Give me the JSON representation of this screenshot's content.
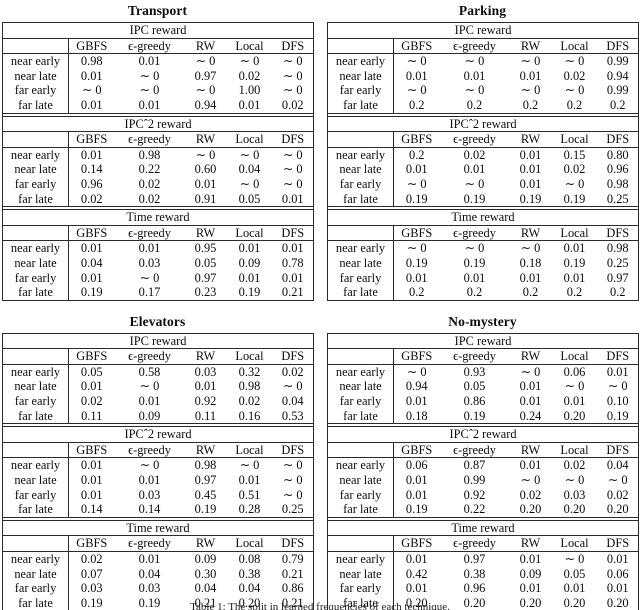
{
  "caption": "Table 1: The split in learned frequencies of each technique.",
  "columns": [
    "GBFS",
    "ϵ-greedy",
    "RW",
    "Local",
    "DFS"
  ],
  "row_labels": [
    "near early",
    "near late",
    "far early",
    "far late"
  ],
  "section_titles": [
    "IPC reward",
    "IPCˆ2 reward",
    "Time reward"
  ],
  "domains": [
    {
      "title": "Transport",
      "sections": [
        {
          "title": "IPC reward",
          "rows": [
            [
              "0.98",
              "0.01",
              "∼ 0",
              "∼ 0",
              "∼ 0"
            ],
            [
              "0.01",
              "∼ 0",
              "0.97",
              "0.02",
              "∼ 0"
            ],
            [
              "∼ 0",
              "∼ 0",
              "∼ 0",
              "1.00",
              "∼ 0"
            ],
            [
              "0.01",
              "0.01",
              "0.94",
              "0.01",
              "0.02"
            ]
          ]
        },
        {
          "title": "IPCˆ2 reward",
          "rows": [
            [
              "0.01",
              "0.98",
              "∼ 0",
              "∼ 0",
              "∼ 0"
            ],
            [
              "0.14",
              "0.22",
              "0.60",
              "0.04",
              "∼ 0"
            ],
            [
              "0.96",
              "0.02",
              "0.01",
              "∼ 0",
              "∼ 0"
            ],
            [
              "0.02",
              "0.02",
              "0.91",
              "0.05",
              "0.01"
            ]
          ]
        },
        {
          "title": "Time reward",
          "rows": [
            [
              "0.01",
              "0.01",
              "0.95",
              "0.01",
              "0.01"
            ],
            [
              "0.04",
              "0.03",
              "0.05",
              "0.09",
              "0.78"
            ],
            [
              "0.01",
              "∼ 0",
              "0.97",
              "0.01",
              "0.01"
            ],
            [
              "0.19",
              "0.17",
              "0.23",
              "0.19",
              "0.21"
            ]
          ]
        }
      ]
    },
    {
      "title": "Parking",
      "sections": [
        {
          "title": "IPC reward",
          "rows": [
            [
              "∼ 0",
              "∼ 0",
              "∼ 0",
              "∼ 0",
              "0.99"
            ],
            [
              "0.01",
              "0.01",
              "0.01",
              "0.02",
              "0.94"
            ],
            [
              "∼ 0",
              "∼ 0",
              "∼ 0",
              "∼ 0",
              "0.99"
            ],
            [
              "0.2",
              "0.2",
              "0.2",
              "0.2",
              "0.2"
            ]
          ]
        },
        {
          "title": "IPCˆ2 reward",
          "rows": [
            [
              "0.2",
              "0.02",
              "0.01",
              "0.15",
              "0.80"
            ],
            [
              "0.01",
              "0.01",
              "0.01",
              "0.02",
              "0.96"
            ],
            [
              "∼ 0",
              "∼ 0",
              "0.01",
              "∼ 0",
              "0.98"
            ],
            [
              "0.19",
              "0.19",
              "0.19",
              "0.19",
              "0.25"
            ]
          ]
        },
        {
          "title": "Time reward",
          "rows": [
            [
              "∼ 0",
              "∼ 0",
              "∼ 0",
              "0.01",
              "0.98"
            ],
            [
              "0.19",
              "0.19",
              "0.18",
              "0.19",
              "0.25"
            ],
            [
              "0.01",
              "0.01",
              "0.01",
              "0.01",
              "0.97"
            ],
            [
              "0.2",
              "0.2",
              "0.2",
              "0.2",
              "0.2"
            ]
          ]
        }
      ]
    },
    {
      "title": "Elevators",
      "sections": [
        {
          "title": "IPC reward",
          "rows": [
            [
              "0.05",
              "0.58",
              "0.03",
              "0.32",
              "0.02"
            ],
            [
              "0.01",
              "∼ 0",
              "0.01",
              "0.98",
              "∼ 0"
            ],
            [
              "0.02",
              "0.01",
              "0.92",
              "0.02",
              "0.04"
            ],
            [
              "0.11",
              "0.09",
              "0.11",
              "0.16",
              "0.53"
            ]
          ]
        },
        {
          "title": "IPCˆ2 reward",
          "rows": [
            [
              "0.01",
              "∼ 0",
              "0.98",
              "∼ 0",
              "∼ 0"
            ],
            [
              "0.01",
              "0.01",
              "0.97",
              "0.01",
              "∼ 0"
            ],
            [
              "0.01",
              "0.03",
              "0.45",
              "0.51",
              "∼ 0"
            ],
            [
              "0.14",
              "0.14",
              "0.19",
              "0.28",
              "0.25"
            ]
          ]
        },
        {
          "title": "Time reward",
          "rows": [
            [
              "0.02",
              "0.01",
              "0.09",
              "0.08",
              "0.79"
            ],
            [
              "0.07",
              "0.04",
              "0.30",
              "0.38",
              "0.21"
            ],
            [
              "0.03",
              "0.03",
              "0.04",
              "0.04",
              "0.86"
            ],
            [
              "0.19",
              "0.19",
              "0.21",
              "0.20",
              "0.21"
            ]
          ]
        }
      ]
    },
    {
      "title": "No-mystery",
      "sections": [
        {
          "title": "IPC reward",
          "rows": [
            [
              "∼ 0",
              "0.93",
              "∼ 0",
              "0.06",
              "0.01"
            ],
            [
              "0.94",
              "0.05",
              "0.01",
              "∼ 0",
              "∼ 0"
            ],
            [
              "0.01",
              "0.86",
              "0.01",
              "0.01",
              "0.10"
            ],
            [
              "0.18",
              "0.19",
              "0.24",
              "0.20",
              "0.19"
            ]
          ]
        },
        {
          "title": "IPCˆ2 reward",
          "rows": [
            [
              "0.06",
              "0.87",
              "0.01",
              "0.02",
              "0.04"
            ],
            [
              "0.01",
              "0.99",
              "∼ 0",
              "∼ 0",
              "∼ 0"
            ],
            [
              "0.01",
              "0.92",
              "0.02",
              "0.03",
              "0.02"
            ],
            [
              "0.19",
              "0.22",
              "0.20",
              "0.20",
              "0.20"
            ]
          ]
        },
        {
          "title": "Time reward",
          "rows": [
            [
              "0.01",
              "0.97",
              "0.01",
              "∼ 0",
              "0.01"
            ],
            [
              "0.42",
              "0.38",
              "0.09",
              "0.05",
              "0.06"
            ],
            [
              "0.01",
              "0.96",
              "0.01",
              "0.01",
              "0.01"
            ],
            [
              "0.20",
              "0.20",
              "0.20",
              "0.20",
              "0.20"
            ]
          ]
        }
      ]
    }
  ]
}
